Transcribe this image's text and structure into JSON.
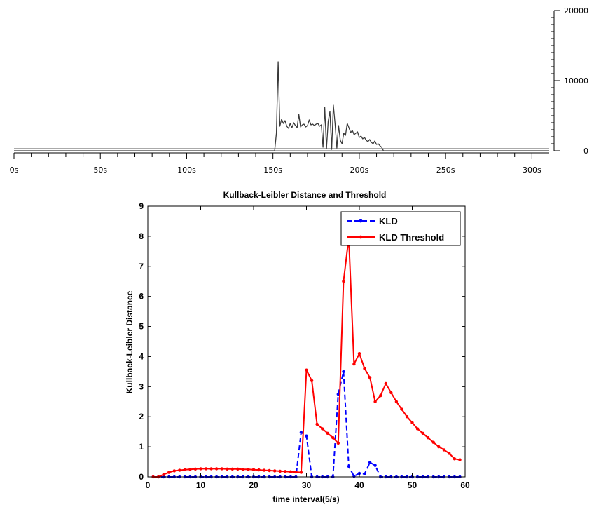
{
  "chart_data": [
    {
      "type": "area",
      "title": "",
      "xlabel": "",
      "ylabel": "",
      "xlim": [
        0,
        310
      ],
      "ylim": [
        0,
        20000
      ],
      "x_ticks": [
        0,
        50,
        100,
        150,
        200,
        250,
        300
      ],
      "x_tick_labels": [
        "0s",
        "50s",
        "100s",
        "150s",
        "200s",
        "250s",
        "300s"
      ],
      "y_ticks": [
        0,
        10000,
        20000
      ],
      "y_tick_labels": [
        "0",
        "10000",
        "20000"
      ],
      "y_axis_side": "right",
      "grid": false,
      "series": [
        {
          "color": "#3a3a3a",
          "x": [
            0,
            151,
            152,
            153,
            154,
            155,
            156,
            157,
            158,
            159,
            160,
            161,
            162,
            163,
            164,
            165,
            166,
            167,
            168,
            169,
            170,
            171,
            172,
            173,
            174,
            175,
            176,
            177,
            178,
            179,
            180,
            181,
            182,
            183,
            184,
            185,
            186,
            187,
            188,
            189,
            190,
            191,
            192,
            193,
            194,
            195,
            196,
            197,
            198,
            199,
            200,
            201,
            202,
            203,
            204,
            205,
            206,
            207,
            208,
            209,
            210,
            211,
            212,
            213,
            214,
            215,
            310
          ],
          "y": [
            0,
            0,
            2500,
            12700,
            3500,
            4500,
            3900,
            4300,
            3500,
            3200,
            3900,
            3300,
            4000,
            3600,
            3300,
            5200,
            3400,
            3700,
            3800,
            3400,
            3600,
            4400,
            3700,
            3800,
            3600,
            3800,
            3900,
            3500,
            3700,
            500,
            6200,
            300,
            4200,
            5600,
            200,
            6500,
            3800,
            400,
            3600,
            1500,
            1000,
            2500,
            2200,
            3900,
            3300,
            2600,
            2900,
            2300,
            2500,
            2700,
            1900,
            2100,
            1700,
            1900,
            1500,
            1300,
            1600,
            1200,
            1000,
            1400,
            900,
            1000,
            700,
            500,
            0,
            0,
            0
          ]
        }
      ]
    },
    {
      "type": "line",
      "title": "Kullback-Leibler Distance and Threshold",
      "xlabel": "time interval(5/s)",
      "ylabel": "Kullback-Leibler Distance",
      "xlim": [
        0,
        60
      ],
      "ylim": [
        0,
        9
      ],
      "x_ticks": [
        0,
        10,
        20,
        30,
        40,
        50,
        60
      ],
      "y_ticks": [
        0,
        1,
        2,
        3,
        4,
        5,
        6,
        7,
        8,
        9
      ],
      "grid": false,
      "legend": "top-right",
      "series": [
        {
          "name": "KLD",
          "color": "#0000ff",
          "style": "dashed",
          "marker": "dot",
          "x": [
            1,
            2,
            3,
            4,
            5,
            6,
            7,
            8,
            9,
            10,
            11,
            12,
            13,
            14,
            15,
            16,
            17,
            18,
            19,
            20,
            21,
            22,
            23,
            24,
            25,
            26,
            27,
            28,
            29,
            30,
            31,
            32,
            33,
            34,
            35,
            36,
            37,
            38,
            39,
            40,
            41,
            42,
            43,
            44,
            45,
            46,
            47,
            48,
            49,
            50,
            51,
            52,
            53,
            54,
            55,
            56,
            57,
            58,
            59
          ],
          "y": [
            0,
            0,
            0,
            0,
            0,
            0,
            0,
            0,
            0,
            0,
            0,
            0,
            0,
            0,
            0,
            0,
            0,
            0,
            0,
            0,
            0,
            0,
            0,
            0,
            0,
            0,
            0,
            0,
            1.48,
            1.36,
            0,
            0,
            0,
            0,
            0,
            2.75,
            3.5,
            0.35,
            0.02,
            0.12,
            0.1,
            0.48,
            0.38,
            0,
            0,
            0,
            0,
            0,
            0,
            0,
            0,
            0,
            0,
            0,
            0,
            0,
            0,
            0,
            0
          ]
        },
        {
          "name": "KLD Threshold",
          "color": "#ff0000",
          "style": "solid",
          "marker": "dot",
          "x": [
            1,
            2,
            3,
            4,
            5,
            6,
            7,
            8,
            9,
            10,
            11,
            12,
            13,
            14,
            15,
            16,
            17,
            18,
            19,
            20,
            21,
            22,
            23,
            24,
            25,
            26,
            27,
            28,
            29,
            30,
            31,
            32,
            33,
            34,
            35,
            36,
            37,
            38,
            39,
            40,
            41,
            42,
            43,
            44,
            45,
            46,
            47,
            48,
            49,
            50,
            51,
            52,
            53,
            54,
            55,
            56,
            57,
            58,
            59
          ],
          "y": [
            0,
            0,
            0.08,
            0.15,
            0.2,
            0.22,
            0.24,
            0.25,
            0.26,
            0.27,
            0.27,
            0.27,
            0.27,
            0.27,
            0.26,
            0.26,
            0.26,
            0.25,
            0.25,
            0.24,
            0.23,
            0.22,
            0.21,
            0.2,
            0.19,
            0.18,
            0.17,
            0.16,
            0.15,
            3.55,
            3.2,
            1.75,
            1.6,
            1.45,
            1.3,
            1.12,
            6.5,
            7.95,
            3.75,
            4.1,
            3.6,
            3.3,
            2.5,
            2.7,
            3.1,
            2.8,
            2.5,
            2.25,
            2.0,
            1.8,
            1.6,
            1.45,
            1.3,
            1.15,
            1.0,
            0.9,
            0.78,
            0.6,
            0.57
          ]
        }
      ]
    }
  ]
}
